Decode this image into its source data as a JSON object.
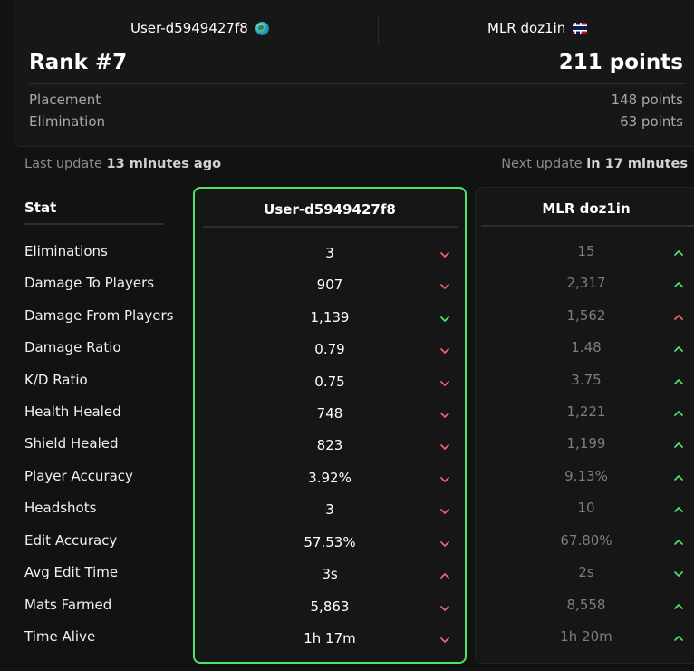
{
  "header": {
    "player_left": "User-d5949427f8",
    "player_right": "MLR doz1in",
    "rank": "Rank #7",
    "points": "211 points",
    "placement_label": "Placement",
    "placement_value": "148 points",
    "elimination_label": "Elimination",
    "elimination_value": "63 points"
  },
  "update": {
    "last_prefix": "Last update",
    "last_value": "13 minutes ago",
    "next_prefix": "Next update",
    "next_value": "in 17 minutes"
  },
  "table": {
    "stat_header": "Stat",
    "user_header": "User-d5949427f8",
    "opponent_header": "MLR doz1in",
    "rows": [
      {
        "stat": "Eliminations",
        "user": "3",
        "user_trend": "down",
        "opp": "15",
        "opp_trend": "up"
      },
      {
        "stat": "Damage To Players",
        "user": "907",
        "user_trend": "down",
        "opp": "2,317",
        "opp_trend": "up"
      },
      {
        "stat": "Damage From Players",
        "user": "1,139",
        "user_trend": "down-good",
        "opp": "1,562",
        "opp_trend": "up-bad"
      },
      {
        "stat": "Damage Ratio",
        "user": "0.79",
        "user_trend": "down",
        "opp": "1.48",
        "opp_trend": "up"
      },
      {
        "stat": "K/D Ratio",
        "user": "0.75",
        "user_trend": "down",
        "opp": "3.75",
        "opp_trend": "up"
      },
      {
        "stat": "Health Healed",
        "user": "748",
        "user_trend": "down",
        "opp": "1,221",
        "opp_trend": "up"
      },
      {
        "stat": "Shield Healed",
        "user": "823",
        "user_trend": "down",
        "opp": "1,199",
        "opp_trend": "up"
      },
      {
        "stat": "Player Accuracy",
        "user": "3.92%",
        "user_trend": "down",
        "opp": "9.13%",
        "opp_trend": "up"
      },
      {
        "stat": "Headshots",
        "user": "3",
        "user_trend": "down",
        "opp": "10",
        "opp_trend": "up"
      },
      {
        "stat": "Edit Accuracy",
        "user": "57.53%",
        "user_trend": "down",
        "opp": "67.80%",
        "opp_trend": "up"
      },
      {
        "stat": "Avg Edit Time",
        "user": "3s",
        "user_trend": "up-bad",
        "opp": "2s",
        "opp_trend": "down-good"
      },
      {
        "stat": "Mats Farmed",
        "user": "5,863",
        "user_trend": "down",
        "opp": "8,558",
        "opp_trend": "up"
      },
      {
        "stat": "Time Alive",
        "user": "1h 17m",
        "user_trend": "down",
        "opp": "1h 20m",
        "opp_trend": "up"
      }
    ]
  },
  "colors": {
    "good": "#4ae36a",
    "bad": "#f0606a",
    "highlight_border": "#4ae36a"
  },
  "icons": {
    "left_player": "globe-icon",
    "right_player": "norway-flag-icon"
  }
}
